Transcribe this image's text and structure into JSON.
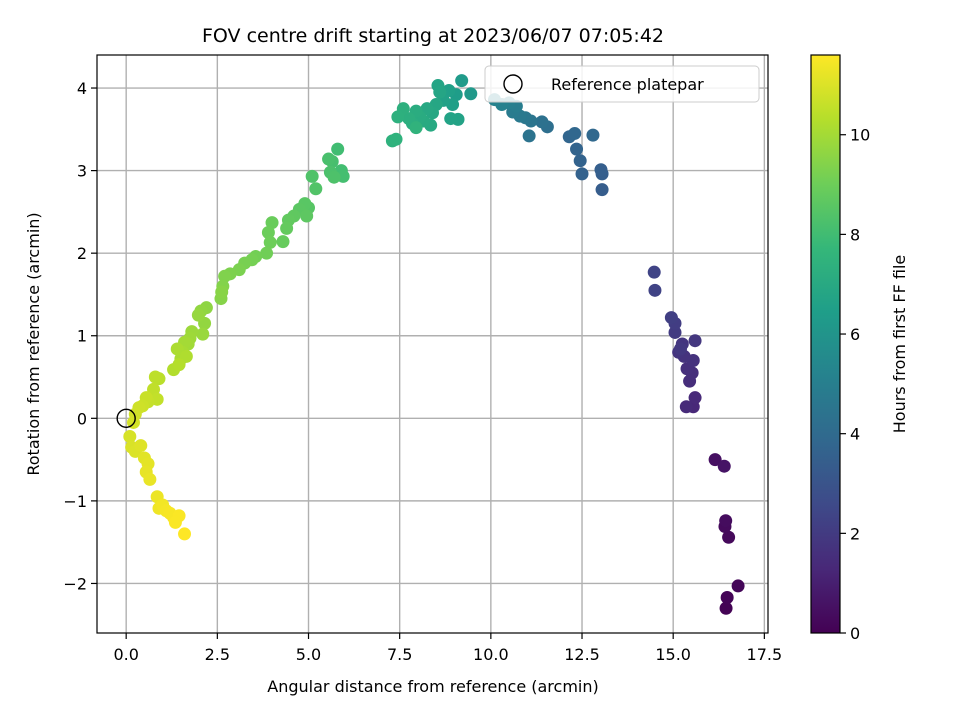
{
  "chart_data": {
    "type": "scatter",
    "title": "FOV centre drift starting at 2023/06/07 07:05:42",
    "xlabel": "Angular distance from reference (arcmin)",
    "ylabel": "Rotation from reference (arcmin)",
    "xlim": [
      -0.8,
      17.6
    ],
    "ylim": [
      -2.6,
      4.4
    ],
    "xticks": [
      0.0,
      2.5,
      5.0,
      7.5,
      10.0,
      12.5,
      15.0,
      17.5
    ],
    "xtick_labels": [
      "0.0",
      "2.5",
      "5.0",
      "7.5",
      "10.0",
      "12.5",
      "15.0",
      "17.5"
    ],
    "yticks": [
      -2,
      -1,
      0,
      1,
      2,
      3,
      4
    ],
    "ytick_labels": [
      "−2",
      "−1",
      "0",
      "1",
      "2",
      "3",
      "4"
    ],
    "grid": true,
    "legend": {
      "position": "top-right",
      "label": "Reference platepar"
    },
    "reference_point": {
      "x": 0.0,
      "y": 0.0
    },
    "colorbar": {
      "label": "Hours from first FF file",
      "range": [
        0,
        11.6
      ],
      "ticks": [
        0,
        2,
        4,
        6,
        8,
        10
      ],
      "tick_labels": [
        "0",
        "2",
        "4",
        "6",
        "8",
        "10"
      ],
      "colormap": [
        "#440154",
        "#482878",
        "#3e4a89",
        "#31688e",
        "#26828e",
        "#1f9e89",
        "#35b779",
        "#6ece58",
        "#b5de2b",
        "#fde725"
      ]
    },
    "points": [
      {
        "x": 16.45,
        "y": -2.3,
        "t": 0.05
      },
      {
        "x": 16.48,
        "y": -2.17,
        "t": 0.1
      },
      {
        "x": 16.78,
        "y": -2.03,
        "t": 0.15
      },
      {
        "x": 16.52,
        "y": -1.44,
        "t": 0.25
      },
      {
        "x": 16.42,
        "y": -1.31,
        "t": 0.3
      },
      {
        "x": 16.44,
        "y": -1.24,
        "t": 0.35
      },
      {
        "x": 16.15,
        "y": -0.5,
        "t": 0.5
      },
      {
        "x": 16.4,
        "y": -0.58,
        "t": 0.6
      },
      {
        "x": 15.55,
        "y": 0.14,
        "t": 1.3
      },
      {
        "x": 15.6,
        "y": 0.25,
        "t": 1.35
      },
      {
        "x": 15.36,
        "y": 0.14,
        "t": 1.4
      },
      {
        "x": 15.45,
        "y": 0.45,
        "t": 1.5
      },
      {
        "x": 15.52,
        "y": 0.55,
        "t": 1.55
      },
      {
        "x": 15.38,
        "y": 0.6,
        "t": 1.6
      },
      {
        "x": 15.55,
        "y": 0.7,
        "t": 1.65
      },
      {
        "x": 15.3,
        "y": 0.75,
        "t": 1.7
      },
      {
        "x": 15.15,
        "y": 0.8,
        "t": 1.75
      },
      {
        "x": 15.25,
        "y": 0.9,
        "t": 1.8
      },
      {
        "x": 15.6,
        "y": 0.94,
        "t": 1.85
      },
      {
        "x": 15.2,
        "y": 0.84,
        "t": 1.9
      },
      {
        "x": 15.05,
        "y": 1.04,
        "t": 2.0
      },
      {
        "x": 15.05,
        "y": 1.15,
        "t": 2.1
      },
      {
        "x": 14.95,
        "y": 1.22,
        "t": 2.15
      },
      {
        "x": 14.5,
        "y": 1.55,
        "t": 2.3
      },
      {
        "x": 14.48,
        "y": 1.77,
        "t": 2.35
      },
      {
        "x": 13.05,
        "y": 2.77,
        "t": 3.4
      },
      {
        "x": 13.05,
        "y": 2.96,
        "t": 3.45
      },
      {
        "x": 13.02,
        "y": 3.01,
        "t": 3.5
      },
      {
        "x": 12.5,
        "y": 2.96,
        "t": 3.6
      },
      {
        "x": 12.45,
        "y": 3.12,
        "t": 3.65
      },
      {
        "x": 12.35,
        "y": 3.26,
        "t": 3.7
      },
      {
        "x": 12.15,
        "y": 3.41,
        "t": 3.8
      },
      {
        "x": 12.3,
        "y": 3.45,
        "t": 3.85
      },
      {
        "x": 12.8,
        "y": 3.43,
        "t": 3.9
      },
      {
        "x": 11.55,
        "y": 3.53,
        "t": 4.2
      },
      {
        "x": 11.4,
        "y": 3.59,
        "t": 4.3
      },
      {
        "x": 11.05,
        "y": 3.42,
        "t": 4.4
      },
      {
        "x": 11.1,
        "y": 3.6,
        "t": 4.5
      },
      {
        "x": 10.95,
        "y": 3.64,
        "t": 4.6
      },
      {
        "x": 10.8,
        "y": 3.66,
        "t": 4.7
      },
      {
        "x": 10.6,
        "y": 3.71,
        "t": 4.8
      },
      {
        "x": 10.7,
        "y": 3.78,
        "t": 4.9
      },
      {
        "x": 10.5,
        "y": 3.82,
        "t": 5.0
      },
      {
        "x": 10.3,
        "y": 3.8,
        "t": 5.1
      },
      {
        "x": 10.1,
        "y": 3.86,
        "t": 5.2
      },
      {
        "x": 9.45,
        "y": 3.93,
        "t": 6.2
      },
      {
        "x": 9.2,
        "y": 4.09,
        "t": 6.3
      },
      {
        "x": 9.05,
        "y": 3.92,
        "t": 6.4
      },
      {
        "x": 8.95,
        "y": 3.8,
        "t": 6.5
      },
      {
        "x": 8.85,
        "y": 3.97,
        "t": 6.55
      },
      {
        "x": 8.7,
        "y": 3.85,
        "t": 6.6
      },
      {
        "x": 9.1,
        "y": 3.62,
        "t": 6.65
      },
      {
        "x": 8.9,
        "y": 3.63,
        "t": 6.7
      },
      {
        "x": 8.55,
        "y": 4.03,
        "t": 6.75
      },
      {
        "x": 8.6,
        "y": 3.95,
        "t": 6.8
      },
      {
        "x": 8.5,
        "y": 3.8,
        "t": 6.85
      },
      {
        "x": 8.4,
        "y": 3.7,
        "t": 6.9
      },
      {
        "x": 8.25,
        "y": 3.75,
        "t": 6.95
      },
      {
        "x": 8.35,
        "y": 3.55,
        "t": 7.0
      },
      {
        "x": 8.15,
        "y": 3.6,
        "t": 7.05
      },
      {
        "x": 8.05,
        "y": 3.65,
        "t": 7.1
      },
      {
        "x": 7.95,
        "y": 3.72,
        "t": 7.15
      },
      {
        "x": 7.85,
        "y": 3.57,
        "t": 7.2
      },
      {
        "x": 7.75,
        "y": 3.63,
        "t": 7.25
      },
      {
        "x": 7.6,
        "y": 3.75,
        "t": 7.3
      },
      {
        "x": 7.45,
        "y": 3.65,
        "t": 7.35
      },
      {
        "x": 7.3,
        "y": 3.36,
        "t": 7.4
      },
      {
        "x": 7.4,
        "y": 3.38,
        "t": 7.45
      },
      {
        "x": 7.95,
        "y": 3.52,
        "t": 7.5
      },
      {
        "x": 5.8,
        "y": 3.26,
        "t": 8.0
      },
      {
        "x": 5.9,
        "y": 3.0,
        "t": 8.05
      },
      {
        "x": 5.95,
        "y": 2.93,
        "t": 8.1
      },
      {
        "x": 5.65,
        "y": 3.11,
        "t": 8.15
      },
      {
        "x": 5.55,
        "y": 3.14,
        "t": 8.2
      },
      {
        "x": 5.6,
        "y": 2.98,
        "t": 8.25
      },
      {
        "x": 5.7,
        "y": 2.92,
        "t": 8.3
      },
      {
        "x": 5.1,
        "y": 2.93,
        "t": 8.35
      },
      {
        "x": 5.2,
        "y": 2.78,
        "t": 8.4
      },
      {
        "x": 5.0,
        "y": 2.55,
        "t": 8.5
      },
      {
        "x": 4.9,
        "y": 2.6,
        "t": 8.55
      },
      {
        "x": 4.75,
        "y": 2.53,
        "t": 8.6
      },
      {
        "x": 4.95,
        "y": 2.45,
        "t": 8.65
      },
      {
        "x": 4.6,
        "y": 2.45,
        "t": 8.7
      },
      {
        "x": 4.45,
        "y": 2.4,
        "t": 8.75
      },
      {
        "x": 4.4,
        "y": 2.3,
        "t": 8.8
      },
      {
        "x": 4.3,
        "y": 2.14,
        "t": 8.85
      },
      {
        "x": 4.0,
        "y": 2.37,
        "t": 8.9
      },
      {
        "x": 3.9,
        "y": 2.25,
        "t": 8.95
      },
      {
        "x": 3.95,
        "y": 2.13,
        "t": 9.0
      },
      {
        "x": 3.85,
        "y": 2.0,
        "t": 9.05
      },
      {
        "x": 3.55,
        "y": 1.96,
        "t": 9.1
      },
      {
        "x": 3.45,
        "y": 1.92,
        "t": 9.15
      },
      {
        "x": 3.25,
        "y": 1.88,
        "t": 9.2
      },
      {
        "x": 3.1,
        "y": 1.8,
        "t": 9.25
      },
      {
        "x": 2.85,
        "y": 1.75,
        "t": 9.3
      },
      {
        "x": 2.7,
        "y": 1.72,
        "t": 9.35
      },
      {
        "x": 2.65,
        "y": 1.6,
        "t": 9.4
      },
      {
        "x": 2.6,
        "y": 1.45,
        "t": 9.45
      },
      {
        "x": 2.62,
        "y": 1.53,
        "t": 9.5
      },
      {
        "x": 2.2,
        "y": 1.34,
        "t": 9.6
      },
      {
        "x": 2.05,
        "y": 1.3,
        "t": 9.65
      },
      {
        "x": 2.15,
        "y": 1.15,
        "t": 9.7
      },
      {
        "x": 1.98,
        "y": 1.25,
        "t": 9.75
      },
      {
        "x": 2.1,
        "y": 1.02,
        "t": 9.8
      },
      {
        "x": 1.8,
        "y": 1.05,
        "t": 9.85
      },
      {
        "x": 1.75,
        "y": 0.97,
        "t": 9.9
      },
      {
        "x": 1.7,
        "y": 0.9,
        "t": 9.95
      },
      {
        "x": 1.6,
        "y": 0.92,
        "t": 10.0
      },
      {
        "x": 1.55,
        "y": 0.8,
        "t": 10.05
      },
      {
        "x": 1.5,
        "y": 0.72,
        "t": 10.1
      },
      {
        "x": 1.4,
        "y": 0.84,
        "t": 10.15
      },
      {
        "x": 1.65,
        "y": 0.75,
        "t": 10.2
      },
      {
        "x": 1.3,
        "y": 0.59,
        "t": 10.25
      },
      {
        "x": 1.45,
        "y": 0.65,
        "t": 10.3
      },
      {
        "x": 0.9,
        "y": 0.48,
        "t": 10.4
      },
      {
        "x": 0.8,
        "y": 0.5,
        "t": 10.45
      },
      {
        "x": 0.75,
        "y": 0.35,
        "t": 10.5
      },
      {
        "x": 0.85,
        "y": 0.23,
        "t": 10.55
      },
      {
        "x": 0.6,
        "y": 0.2,
        "t": 10.6
      },
      {
        "x": 0.55,
        "y": 0.25,
        "t": 10.65
      },
      {
        "x": 0.45,
        "y": 0.15,
        "t": 10.7
      },
      {
        "x": 0.35,
        "y": 0.13,
        "t": 10.75
      },
      {
        "x": 0.25,
        "y": 0.05,
        "t": 10.8
      },
      {
        "x": 0.2,
        "y": -0.05,
        "t": 10.85
      },
      {
        "x": 0.1,
        "y": -0.22,
        "t": 10.9
      },
      {
        "x": 0.15,
        "y": -0.35,
        "t": 10.95
      },
      {
        "x": 0.25,
        "y": -0.4,
        "t": 11.0
      },
      {
        "x": 0.4,
        "y": -0.33,
        "t": 11.05
      },
      {
        "x": 0.5,
        "y": -0.48,
        "t": 11.1
      },
      {
        "x": 0.6,
        "y": -0.55,
        "t": 11.15
      },
      {
        "x": 0.55,
        "y": -0.65,
        "t": 11.2
      },
      {
        "x": 0.65,
        "y": -0.74,
        "t": 11.25
      },
      {
        "x": 0.85,
        "y": -0.95,
        "t": 11.3
      },
      {
        "x": 0.9,
        "y": -1.09,
        "t": 11.35
      },
      {
        "x": 1.0,
        "y": -1.05,
        "t": 11.4
      },
      {
        "x": 1.1,
        "y": -1.12,
        "t": 11.45
      },
      {
        "x": 1.2,
        "y": -1.15,
        "t": 11.5
      },
      {
        "x": 1.3,
        "y": -1.2,
        "t": 11.5
      },
      {
        "x": 1.45,
        "y": -1.18,
        "t": 11.55
      },
      {
        "x": 1.35,
        "y": -1.26,
        "t": 11.55
      },
      {
        "x": 1.6,
        "y": -1.4,
        "t": 11.6
      }
    ]
  }
}
